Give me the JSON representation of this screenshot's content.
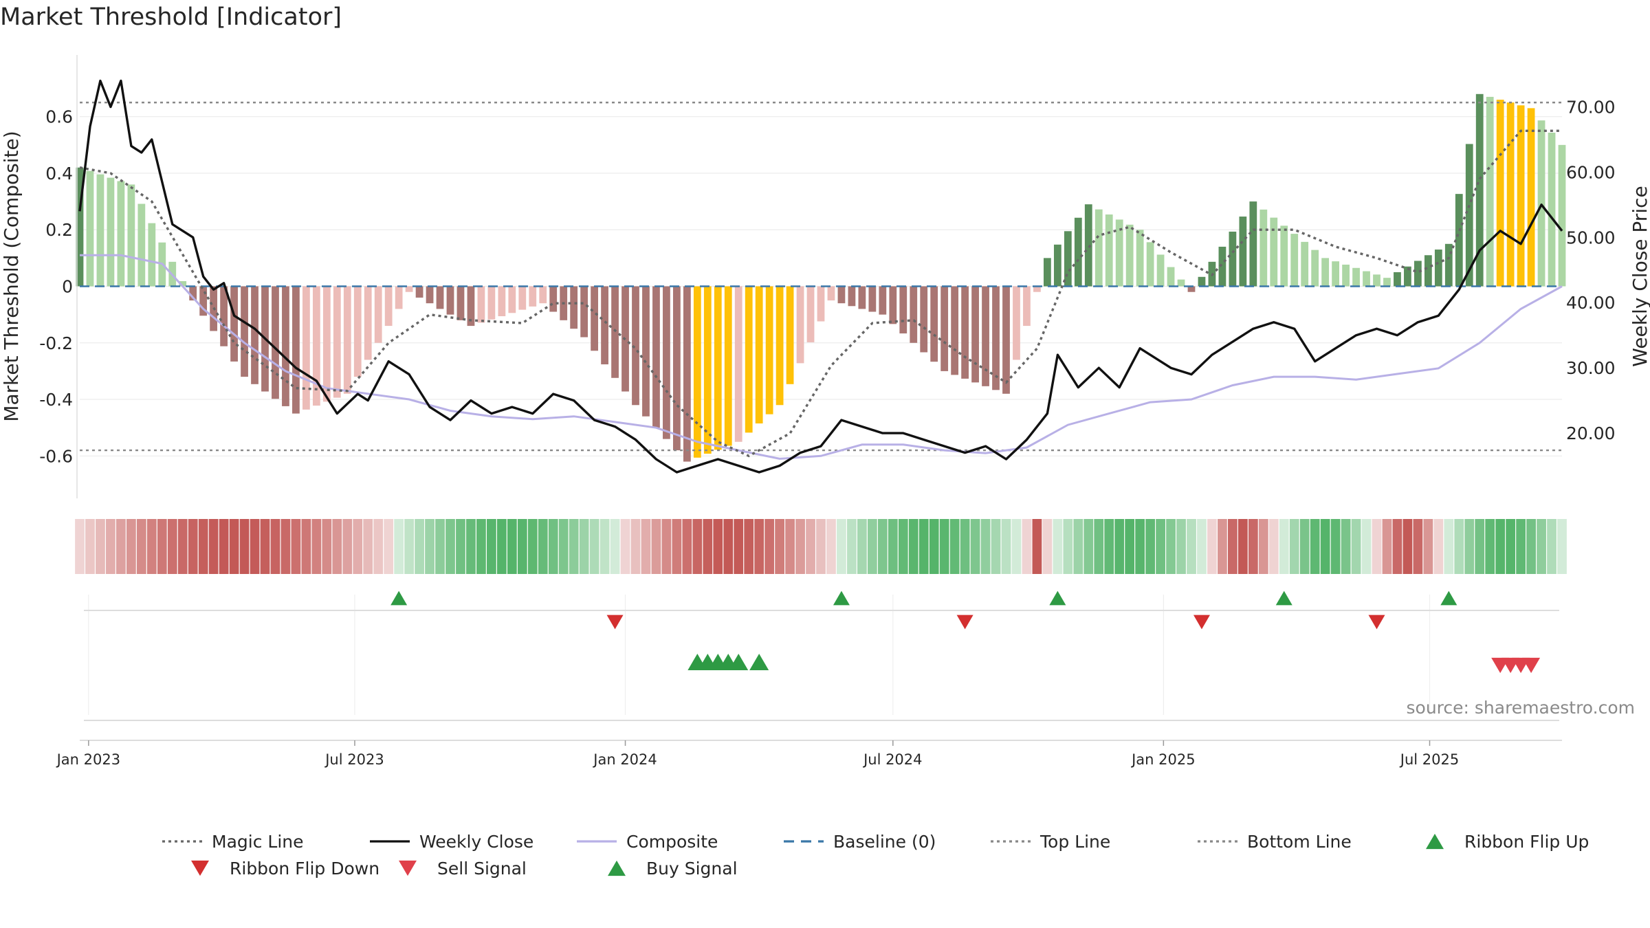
{
  "chart_data": {
    "type": "bar",
    "title": "Market Threshold [Indicator]",
    "ylabel_left": "Market Threshold (Composite)",
    "ylabel_right": "Weekly Close Price",
    "source": "source: sharemaestro.com",
    "ylim_left": [
      -0.75,
      0.75
    ],
    "ylim_right": [
      10,
      75
    ],
    "yticks_left": [
      {
        "value": 0.6,
        "label": "0.6"
      },
      {
        "value": 0.4,
        "label": "0.4"
      },
      {
        "value": 0.2,
        "label": "0.2"
      },
      {
        "value": 0,
        "label": "0"
      },
      {
        "value": -0.2,
        "label": "-0.2"
      },
      {
        "value": -0.4,
        "label": "-0.4"
      },
      {
        "value": -0.6,
        "label": "-0.6"
      }
    ],
    "yticks_right": [
      {
        "value": 70,
        "label": "70.00"
      },
      {
        "value": 60,
        "label": "60.00"
      },
      {
        "value": 50,
        "label": "50.00"
      },
      {
        "value": 40,
        "label": "40.00"
      },
      {
        "value": 30,
        "label": "30.00"
      },
      {
        "value": 20,
        "label": "20.00"
      }
    ],
    "x_start": "2022-12-26",
    "x_end": "2025-09-29",
    "xticks": [
      {
        "date": "2023-01-01",
        "label": "Jan 2023"
      },
      {
        "date": "2023-07-01",
        "label": "Jul 2023"
      },
      {
        "date": "2024-01-01",
        "label": "Jan 2024"
      },
      {
        "date": "2024-07-01",
        "label": "Jul 2024"
      },
      {
        "date": "2025-01-01",
        "label": "Jan 2025"
      },
      {
        "date": "2025-07-01",
        "label": "Jul 2025"
      }
    ],
    "top_line": 0.65,
    "bottom_line": -0.58,
    "baseline": 0,
    "composite": {
      "keyframes": [
        [
          "2022-12-26",
          0.42
        ],
        [
          "2023-01-30",
          0.36
        ],
        [
          "2023-03-13",
          -0.05
        ],
        [
          "2023-04-17",
          -0.32
        ],
        [
          "2023-05-22",
          -0.45
        ],
        [
          "2023-06-26",
          -0.38
        ],
        [
          "2023-08-07",
          -0.02
        ],
        [
          "2023-09-18",
          -0.14
        ],
        [
          "2023-11-06",
          -0.06
        ],
        [
          "2023-12-04",
          -0.18
        ],
        [
          "2024-01-08",
          -0.42
        ],
        [
          "2024-02-12",
          -0.62
        ],
        [
          "2024-03-18",
          -0.55
        ],
        [
          "2024-04-15",
          -0.42
        ],
        [
          "2024-05-20",
          -0.05
        ],
        [
          "2024-06-24",
          -0.1
        ],
        [
          "2024-08-05",
          -0.3
        ],
        [
          "2024-09-16",
          -0.38
        ],
        [
          "2024-10-14",
          0.1
        ],
        [
          "2024-11-11",
          0.29
        ],
        [
          "2024-12-16",
          0.2
        ],
        [
          "2025-01-20",
          -0.02
        ],
        [
          "2025-03-03",
          0.3
        ],
        [
          "2025-04-21",
          0.1
        ],
        [
          "2025-06-02",
          0.03
        ],
        [
          "2025-07-14",
          0.15
        ],
        [
          "2025-08-04",
          0.68
        ],
        [
          "2025-09-08",
          0.63
        ],
        [
          "2025-09-29",
          0.5
        ]
      ]
    },
    "signal_bars": [
      {
        "start": "2024-02-19",
        "end": "2024-03-11",
        "color": "#ffc107"
      },
      {
        "start": "2024-03-25",
        "end": "2024-04-22",
        "color": "#ffc107"
      },
      {
        "start": "2025-08-18",
        "end": "2025-09-08",
        "color": "#ffc107"
      }
    ],
    "magic_line": {
      "points": [
        [
          "2022-12-26",
          0.42
        ],
        [
          "2023-01-16",
          0.4
        ],
        [
          "2023-02-13",
          0.3
        ],
        [
          "2023-03-13",
          0.05
        ],
        [
          "2023-04-10",
          -0.2
        ],
        [
          "2023-05-22",
          -0.36
        ],
        [
          "2023-06-26",
          -0.37
        ],
        [
          "2023-07-24",
          -0.2
        ],
        [
          "2023-08-21",
          -0.1
        ],
        [
          "2023-09-18",
          -0.12
        ],
        [
          "2023-10-23",
          -0.13
        ],
        [
          "2023-11-13",
          -0.06
        ],
        [
          "2023-12-04",
          -0.06
        ],
        [
          "2024-01-08",
          -0.22
        ],
        [
          "2024-02-05",
          -0.42
        ],
        [
          "2024-03-04",
          -0.55
        ],
        [
          "2024-03-25",
          -0.6
        ],
        [
          "2024-04-22",
          -0.52
        ],
        [
          "2024-05-20",
          -0.28
        ],
        [
          "2024-06-17",
          -0.13
        ],
        [
          "2024-07-15",
          -0.12
        ],
        [
          "2024-08-19",
          -0.25
        ],
        [
          "2024-09-16",
          -0.34
        ],
        [
          "2024-10-07",
          -0.22
        ],
        [
          "2024-10-28",
          0.05
        ],
        [
          "2024-11-18",
          0.18
        ],
        [
          "2024-12-09",
          0.21
        ],
        [
          "2025-01-06",
          0.12
        ],
        [
          "2025-02-03",
          0.04
        ],
        [
          "2025-03-03",
          0.2
        ],
        [
          "2025-03-31",
          0.2
        ],
        [
          "2025-04-28",
          0.14
        ],
        [
          "2025-05-26",
          0.1
        ],
        [
          "2025-06-23",
          0.05
        ],
        [
          "2025-07-14",
          0.1
        ],
        [
          "2025-08-04",
          0.38
        ],
        [
          "2025-09-01",
          0.55
        ],
        [
          "2025-09-29",
          0.55
        ]
      ]
    },
    "composite_line": {
      "points": [
        [
          "2022-12-26",
          0.11
        ],
        [
          "2023-01-23",
          0.11
        ],
        [
          "2023-02-20",
          0.08
        ],
        [
          "2023-03-20",
          -0.08
        ],
        [
          "2023-04-17",
          -0.2
        ],
        [
          "2023-05-15",
          -0.3
        ],
        [
          "2023-06-12",
          -0.36
        ],
        [
          "2023-07-10",
          -0.38
        ],
        [
          "2023-08-07",
          -0.4
        ],
        [
          "2023-09-04",
          -0.44
        ],
        [
          "2023-10-02",
          -0.46
        ],
        [
          "2023-10-30",
          -0.47
        ],
        [
          "2023-11-27",
          -0.46
        ],
        [
          "2023-12-25",
          -0.48
        ],
        [
          "2024-01-22",
          -0.5
        ],
        [
          "2024-02-19",
          -0.55
        ],
        [
          "2024-03-18",
          -0.58
        ],
        [
          "2024-04-15",
          -0.61
        ],
        [
          "2024-05-13",
          -0.6
        ],
        [
          "2024-06-10",
          -0.56
        ],
        [
          "2024-07-08",
          -0.56
        ],
        [
          "2024-08-05",
          -0.58
        ],
        [
          "2024-09-02",
          -0.59
        ],
        [
          "2024-09-30",
          -0.57
        ],
        [
          "2024-10-28",
          -0.49
        ],
        [
          "2024-11-25",
          -0.45
        ],
        [
          "2024-12-23",
          -0.41
        ],
        [
          "2025-01-20",
          -0.4
        ],
        [
          "2025-02-17",
          -0.35
        ],
        [
          "2025-03-17",
          -0.32
        ],
        [
          "2025-04-14",
          -0.32
        ],
        [
          "2025-05-12",
          -0.33
        ],
        [
          "2025-06-09",
          -0.31
        ],
        [
          "2025-07-07",
          -0.29
        ],
        [
          "2025-08-04",
          -0.2
        ],
        [
          "2025-09-01",
          -0.08
        ],
        [
          "2025-09-29",
          0.0
        ]
      ]
    },
    "weekly_close": {
      "points": [
        [
          "2022-12-26",
          54
        ],
        [
          "2023-01-02",
          67
        ],
        [
          "2023-01-09",
          74
        ],
        [
          "2023-01-16",
          70
        ],
        [
          "2023-01-23",
          74
        ],
        [
          "2023-01-30",
          64
        ],
        [
          "2023-02-06",
          63
        ],
        [
          "2023-02-13",
          65
        ],
        [
          "2023-02-27",
          52
        ],
        [
          "2023-03-13",
          50
        ],
        [
          "2023-03-20",
          44
        ],
        [
          "2023-03-27",
          42
        ],
        [
          "2023-04-03",
          43
        ],
        [
          "2023-04-10",
          38
        ],
        [
          "2023-04-24",
          36
        ],
        [
          "2023-05-08",
          33
        ],
        [
          "2023-05-22",
          30
        ],
        [
          "2023-06-05",
          28
        ],
        [
          "2023-06-19",
          23
        ],
        [
          "2023-07-03",
          26
        ],
        [
          "2023-07-10",
          25
        ],
        [
          "2023-07-24",
          31
        ],
        [
          "2023-08-07",
          29
        ],
        [
          "2023-08-21",
          24
        ],
        [
          "2023-09-04",
          22
        ],
        [
          "2023-09-18",
          25
        ],
        [
          "2023-10-02",
          23
        ],
        [
          "2023-10-16",
          24
        ],
        [
          "2023-10-30",
          23
        ],
        [
          "2023-11-13",
          26
        ],
        [
          "2023-11-27",
          25
        ],
        [
          "2023-12-11",
          22
        ],
        [
          "2023-12-25",
          21
        ],
        [
          "2024-01-08",
          19
        ],
        [
          "2024-01-22",
          16
        ],
        [
          "2024-02-05",
          14
        ],
        [
          "2024-02-19",
          15
        ],
        [
          "2024-03-04",
          16
        ],
        [
          "2024-03-18",
          15
        ],
        [
          "2024-04-01",
          14
        ],
        [
          "2024-04-15",
          15
        ],
        [
          "2024-04-29",
          17
        ],
        [
          "2024-05-13",
          18
        ],
        [
          "2024-05-27",
          22
        ],
        [
          "2024-06-10",
          21
        ],
        [
          "2024-06-24",
          20
        ],
        [
          "2024-07-08",
          20
        ],
        [
          "2024-07-22",
          19
        ],
        [
          "2024-08-05",
          18
        ],
        [
          "2024-08-19",
          17
        ],
        [
          "2024-09-02",
          18
        ],
        [
          "2024-09-16",
          16
        ],
        [
          "2024-09-30",
          19
        ],
        [
          "2024-10-14",
          23
        ],
        [
          "2024-10-21",
          32
        ],
        [
          "2024-11-04",
          27
        ],
        [
          "2024-11-18",
          30
        ],
        [
          "2024-12-02",
          27
        ],
        [
          "2024-12-16",
          33
        ],
        [
          "2025-01-06",
          30
        ],
        [
          "2025-01-20",
          29
        ],
        [
          "2025-02-03",
          32
        ],
        [
          "2025-02-17",
          34
        ],
        [
          "2025-03-03",
          36
        ],
        [
          "2025-03-17",
          37
        ],
        [
          "2025-03-31",
          36
        ],
        [
          "2025-04-14",
          31
        ],
        [
          "2025-04-28",
          33
        ],
        [
          "2025-05-12",
          35
        ],
        [
          "2025-05-26",
          36
        ],
        [
          "2025-06-09",
          35
        ],
        [
          "2025-06-23",
          37
        ],
        [
          "2025-07-07",
          38
        ],
        [
          "2025-07-21",
          42
        ],
        [
          "2025-08-04",
          48
        ],
        [
          "2025-08-18",
          51
        ],
        [
          "2025-09-01",
          49
        ],
        [
          "2025-09-15",
          55
        ],
        [
          "2025-09-29",
          51
        ]
      ]
    },
    "ribbon": {
      "segments": [
        {
          "start": "2022-12-26",
          "end": "2023-07-24",
          "color": "#c0504d"
        },
        {
          "start": "2023-07-31",
          "end": "2023-12-25",
          "color": "#4cb062"
        },
        {
          "start": "2024-01-01",
          "end": "2024-05-20",
          "color": "#c0504d"
        },
        {
          "start": "2024-05-27",
          "end": "2024-09-23",
          "color": "#4cb062"
        },
        {
          "start": "2024-09-30",
          "end": "2024-10-14",
          "color": "#c0504d"
        },
        {
          "start": "2024-10-21",
          "end": "2025-01-27",
          "color": "#4cb062"
        },
        {
          "start": "2025-02-03",
          "end": "2025-03-17",
          "color": "#c0504d"
        },
        {
          "start": "2025-03-24",
          "end": "2025-05-19",
          "color": "#4cb062"
        },
        {
          "start": "2025-05-26",
          "end": "2025-07-07",
          "color": "#c0504d"
        },
        {
          "start": "2025-07-14",
          "end": "2025-09-29",
          "color": "#4cb062"
        }
      ]
    },
    "ribbon_flip_up": [
      "2023-07-31",
      "2024-05-27",
      "2024-10-21",
      "2025-03-24",
      "2025-07-14"
    ],
    "ribbon_flip_down": [
      "2023-12-25",
      "2024-08-19",
      "2025-01-27",
      "2025-05-26"
    ],
    "buy_signals": [
      "2024-02-19",
      "2024-02-26",
      "2024-03-04",
      "2024-03-11",
      "2024-03-18",
      "2024-04-01"
    ],
    "sell_signals": [
      "2025-08-18",
      "2025-08-25",
      "2025-09-01",
      "2025-09-08"
    ],
    "legend": [
      {
        "label": "Magic Line",
        "kind": "dotted",
        "color": "#666666"
      },
      {
        "label": "Weekly Close",
        "kind": "solid",
        "color": "#111111"
      },
      {
        "label": "Composite",
        "kind": "solid",
        "color": "#b8b0e6"
      },
      {
        "label": "Baseline (0)",
        "kind": "dashed",
        "color": "#3a77a8"
      },
      {
        "label": "Top Line",
        "kind": "dotted",
        "color": "#888888"
      },
      {
        "label": "Bottom Line",
        "kind": "dotted",
        "color": "#888888"
      },
      {
        "label": "Ribbon Flip Up",
        "kind": "tri-up",
        "color": "#2e9a44"
      },
      {
        "label": "Ribbon Flip Down",
        "kind": "tri-down",
        "color": "#d32f2f"
      },
      {
        "label": "Sell Signal",
        "kind": "tri-down",
        "color": "#e0404a"
      },
      {
        "label": "Buy Signal",
        "kind": "tri-up",
        "color": "#2e9a44"
      }
    ],
    "legend_placement": "bottom",
    "grid": true
  }
}
